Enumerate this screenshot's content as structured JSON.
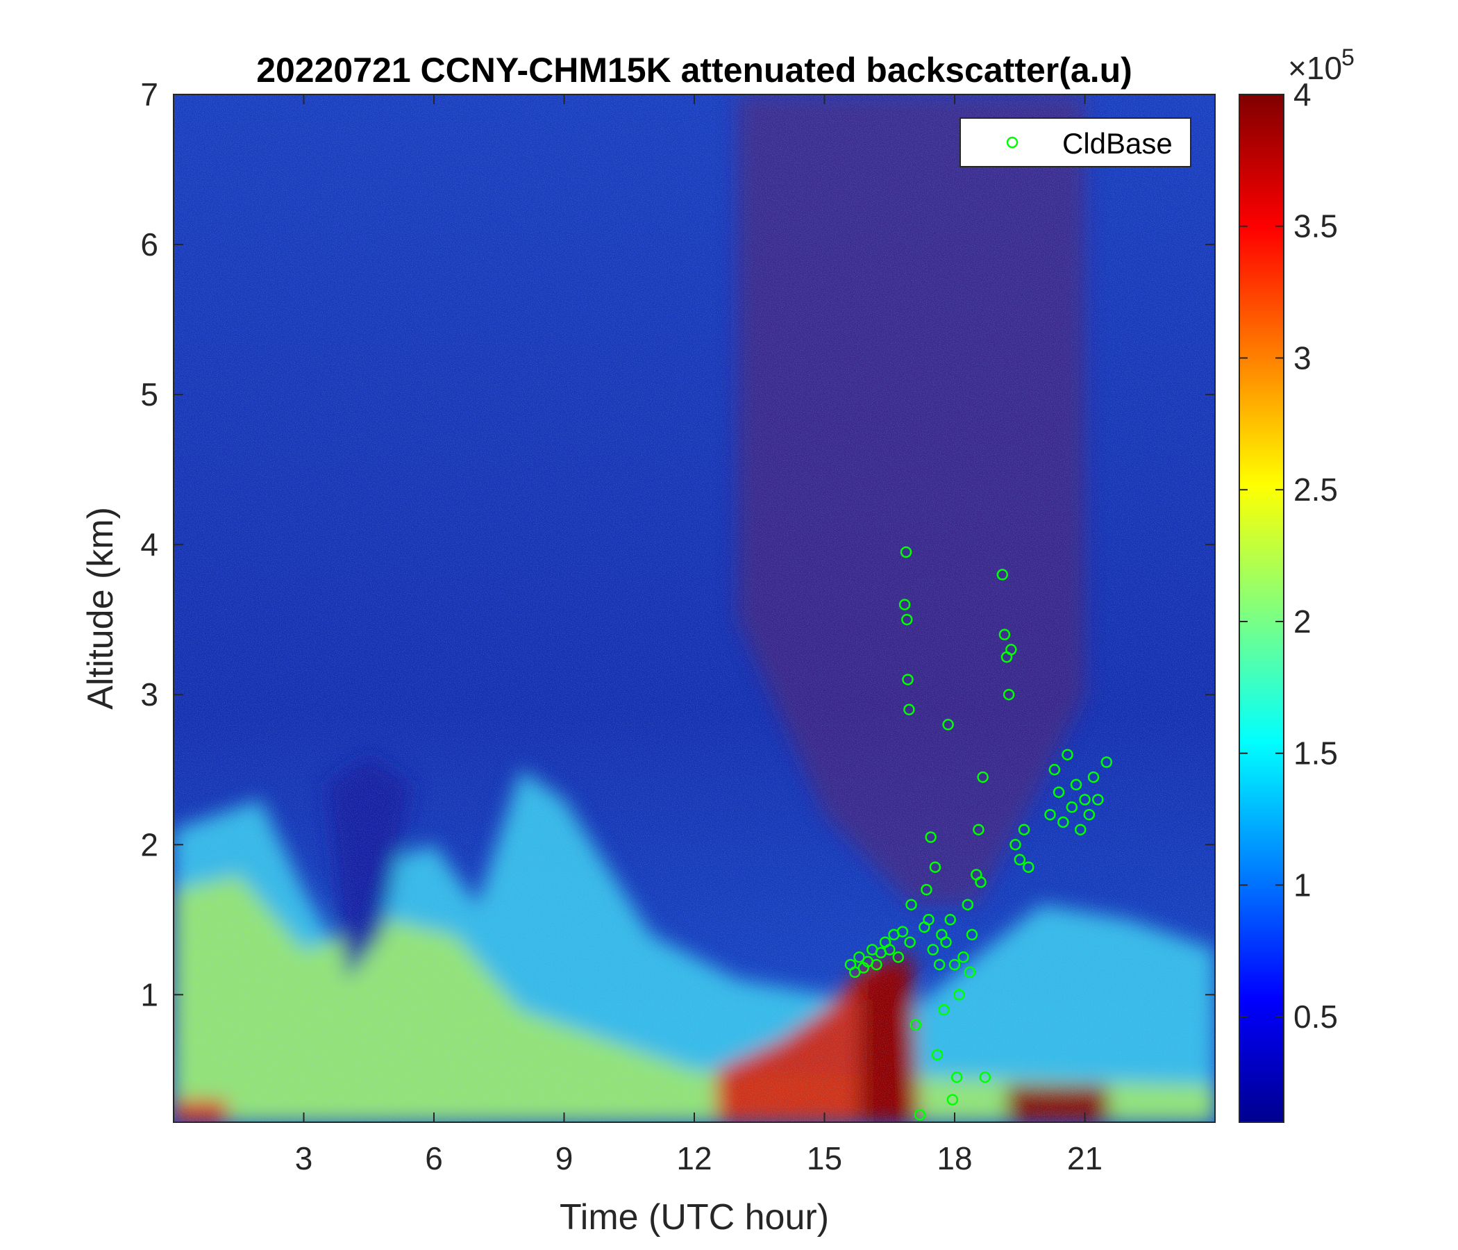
{
  "chart_data": {
    "type": "heatmap",
    "title": "20220721 CCNY-CHM15K attenuated backscatter(a.u)",
    "xlabel": "Time (UTC hour)",
    "ylabel": "Altitude (km)",
    "xlim": [
      0,
      24
    ],
    "ylim": [
      0.15,
      7
    ],
    "xticks": [
      3,
      6,
      9,
      12,
      15,
      18,
      21
    ],
    "yticks": [
      1,
      2,
      3,
      4,
      5,
      6,
      7
    ],
    "colorbar": {
      "colormap": "jet",
      "range": [
        0.1,
        4
      ],
      "ticks": [
        0.5,
        1,
        1.5,
        2,
        2.5,
        3,
        3.5,
        4
      ],
      "exponent_label": "×10",
      "exponent": "5"
    },
    "legend": {
      "placement": "top-right",
      "entries": [
        {
          "name": "CldBase",
          "marker": "circle",
          "color": "#00ff00"
        }
      ]
    },
    "series": [
      {
        "name": "CldBase",
        "type": "scatter",
        "points": [
          [
            15.6,
            1.2
          ],
          [
            15.7,
            1.15
          ],
          [
            15.8,
            1.25
          ],
          [
            15.9,
            1.18
          ],
          [
            16.0,
            1.22
          ],
          [
            16.1,
            1.3
          ],
          [
            16.2,
            1.2
          ],
          [
            16.3,
            1.28
          ],
          [
            16.4,
            1.35
          ],
          [
            16.5,
            1.3
          ],
          [
            16.6,
            1.4
          ],
          [
            16.7,
            1.25
          ],
          [
            16.8,
            1.42
          ],
          [
            16.85,
            3.6
          ],
          [
            16.9,
            3.5
          ],
          [
            16.88,
            3.95
          ],
          [
            16.92,
            3.1
          ],
          [
            16.95,
            2.9
          ],
          [
            16.97,
            1.35
          ],
          [
            17.0,
            1.6
          ],
          [
            17.1,
            0.8
          ],
          [
            17.2,
            0.2
          ],
          [
            17.3,
            1.45
          ],
          [
            17.35,
            1.7
          ],
          [
            17.4,
            1.5
          ],
          [
            17.45,
            2.05
          ],
          [
            17.5,
            1.3
          ],
          [
            17.55,
            1.85
          ],
          [
            17.6,
            0.6
          ],
          [
            17.65,
            1.2
          ],
          [
            17.7,
            1.4
          ],
          [
            17.75,
            0.9
          ],
          [
            17.8,
            1.35
          ],
          [
            17.85,
            2.8
          ],
          [
            17.9,
            1.5
          ],
          [
            17.95,
            0.3
          ],
          [
            18.0,
            1.2
          ],
          [
            18.05,
            0.45
          ],
          [
            18.1,
            1.0
          ],
          [
            18.2,
            1.25
          ],
          [
            18.3,
            1.6
          ],
          [
            18.35,
            1.15
          ],
          [
            18.4,
            1.4
          ],
          [
            18.5,
            1.8
          ],
          [
            18.55,
            2.1
          ],
          [
            18.6,
            1.75
          ],
          [
            18.65,
            2.45
          ],
          [
            18.7,
            0.45
          ],
          [
            19.1,
            3.8
          ],
          [
            19.15,
            3.4
          ],
          [
            19.2,
            3.25
          ],
          [
            19.25,
            3.0
          ],
          [
            19.3,
            3.3
          ],
          [
            19.4,
            2.0
          ],
          [
            19.5,
            1.9
          ],
          [
            19.6,
            2.1
          ],
          [
            19.7,
            1.85
          ],
          [
            20.2,
            2.2
          ],
          [
            20.3,
            2.5
          ],
          [
            20.4,
            2.35
          ],
          [
            20.5,
            2.15
          ],
          [
            20.6,
            2.6
          ],
          [
            20.7,
            2.25
          ],
          [
            20.8,
            2.4
          ],
          [
            20.9,
            2.1
          ],
          [
            21.0,
            2.3
          ],
          [
            21.1,
            2.2
          ],
          [
            21.2,
            2.45
          ],
          [
            21.3,
            2.3
          ],
          [
            21.5,
            2.55
          ]
        ]
      }
    ]
  }
}
